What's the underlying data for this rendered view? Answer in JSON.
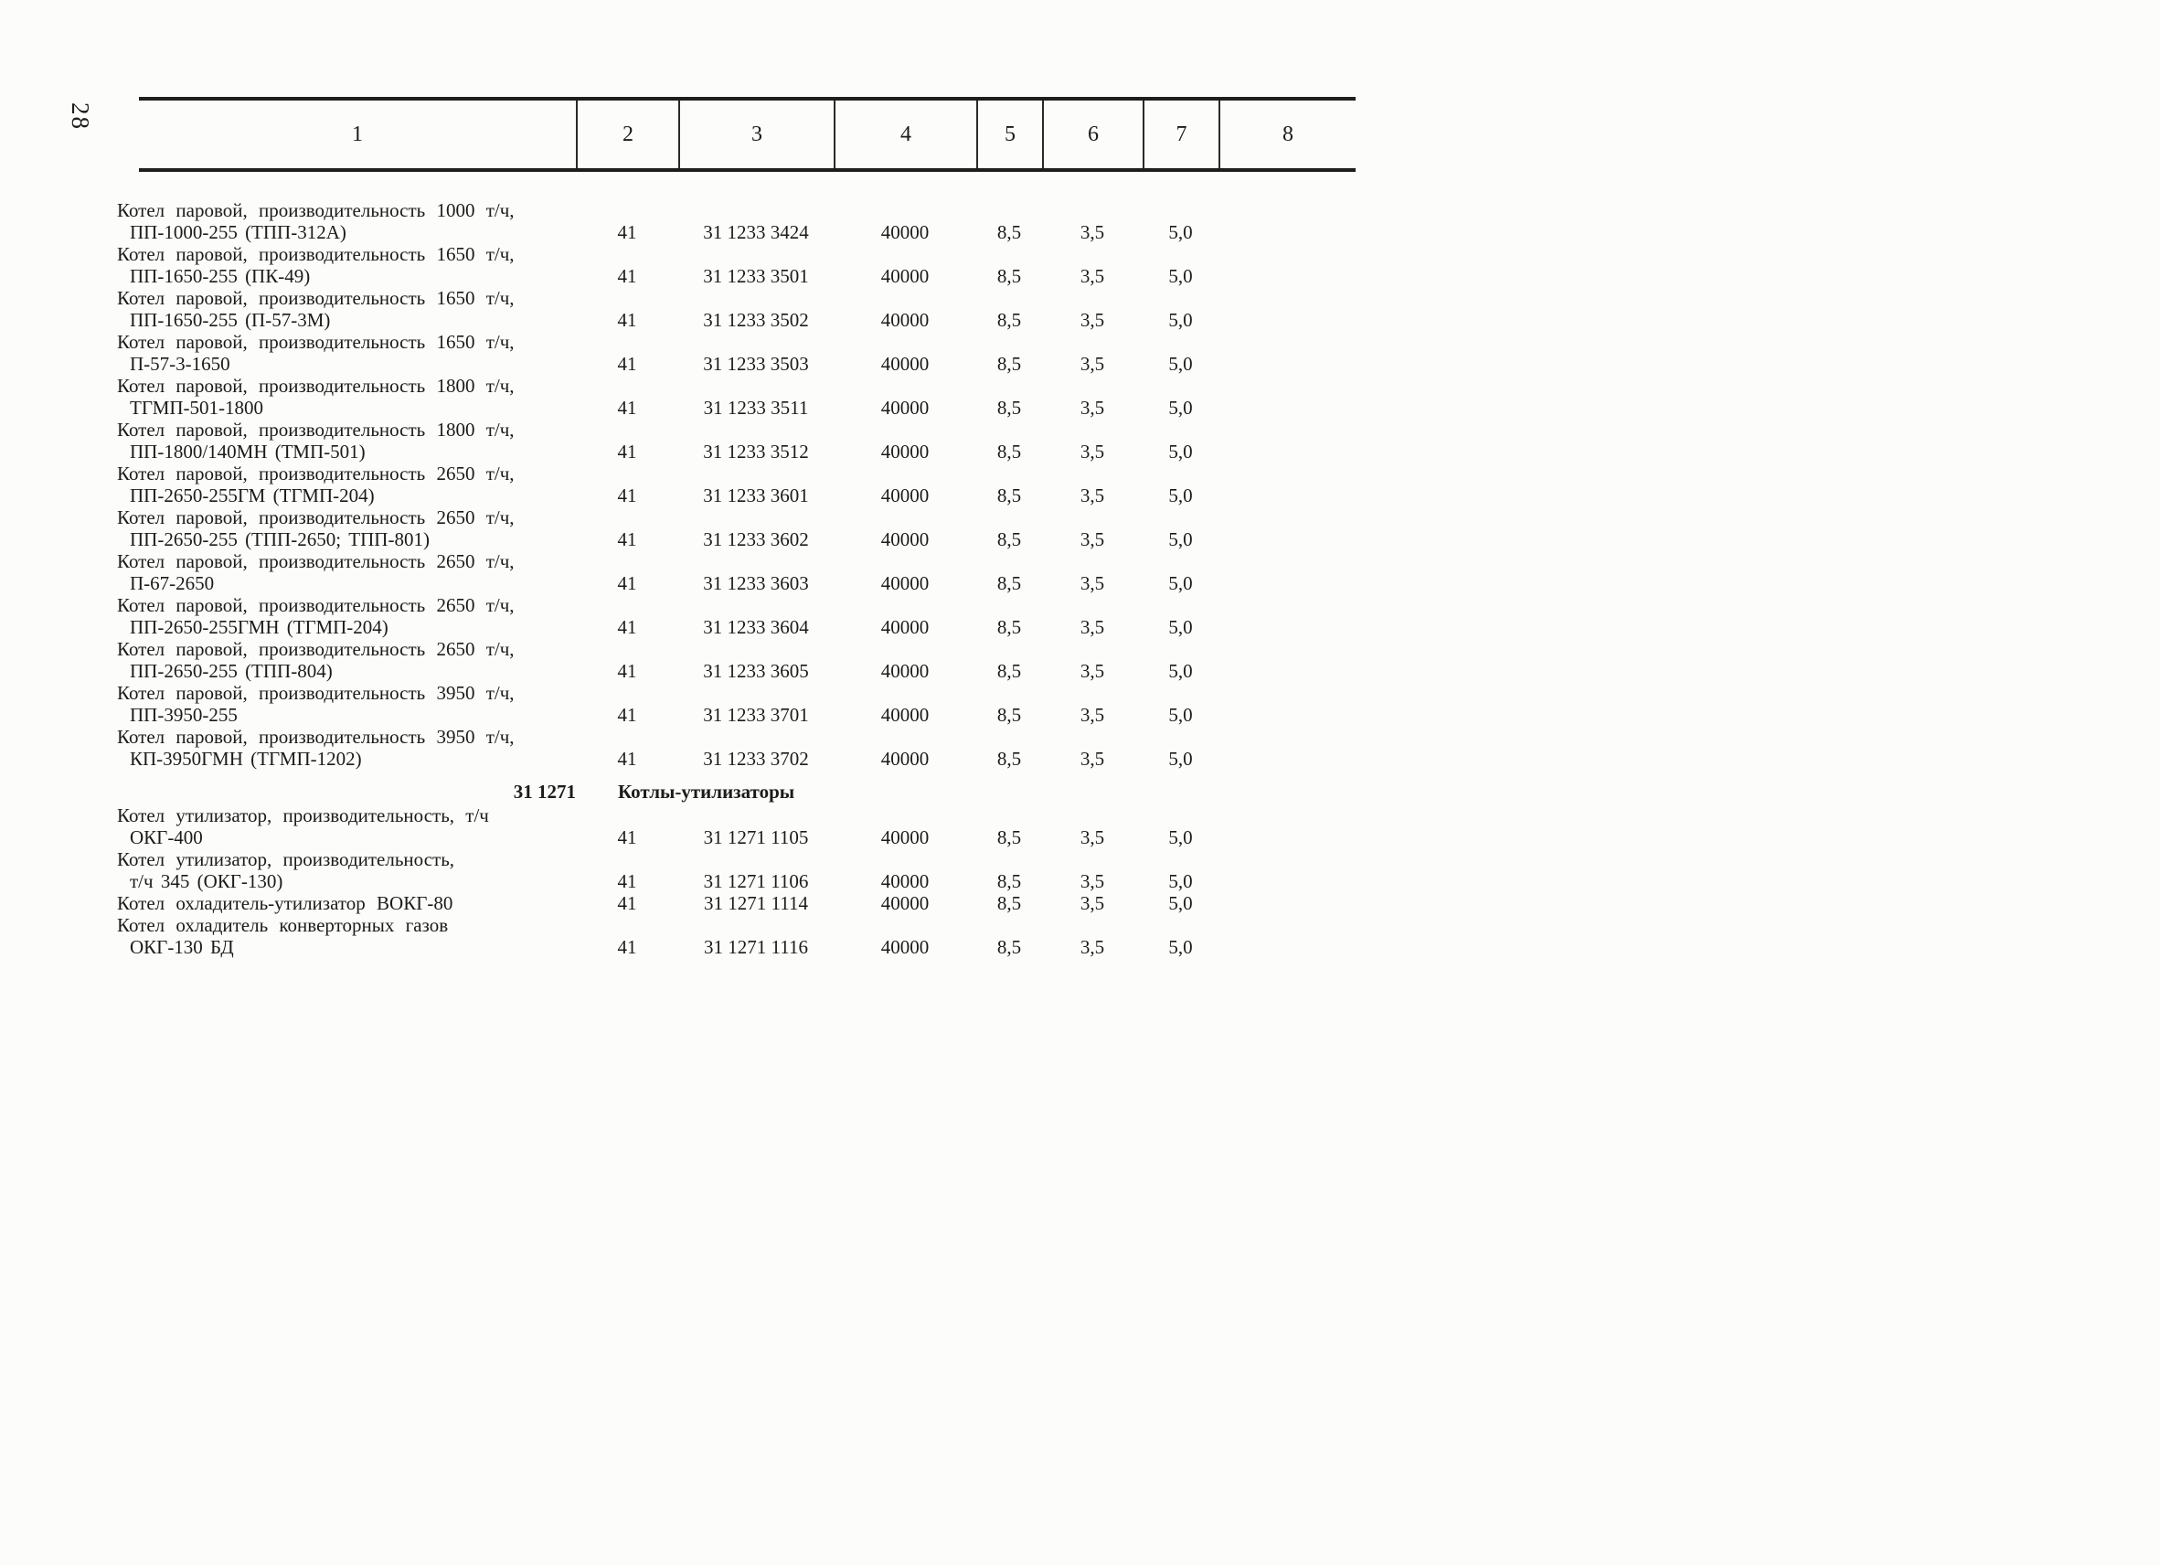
{
  "page": {
    "number": "28"
  },
  "colors": {
    "paper": "#fcfcfa",
    "ink": "#1b1b1b",
    "rule": "#1e1e1e"
  },
  "table": {
    "headers": [
      "1",
      "2",
      "3",
      "4",
      "5",
      "6",
      "7",
      "8"
    ],
    "rows": [
      {
        "name1": "Котел паровой, производительность 1000 т/ч,",
        "name2": "ПП-1000-255 (ТПП-312А)",
        "c2": "41",
        "c3": "31 1233 3424",
        "c4": "40000",
        "c5": "8,5",
        "c6": "3,5",
        "c7": "5,0",
        "c8": ""
      },
      {
        "name1": "Котел паровой, производительность 1650 т/ч,",
        "name2": "ПП-1650-255 (ПК-49)",
        "c2": "41",
        "c3": "31 1233 3501",
        "c4": "40000",
        "c5": "8,5",
        "c6": "3,5",
        "c7": "5,0",
        "c8": ""
      },
      {
        "name1": "Котел паровой, производительность 1650 т/ч,",
        "name2": "ПП-1650-255 (П-57-3М)",
        "c2": "41",
        "c3": "31 1233 3502",
        "c4": "40000",
        "c5": "8,5",
        "c6": "3,5",
        "c7": "5,0",
        "c8": ""
      },
      {
        "name1": "Котел паровой, производительность 1650 т/ч,",
        "name2": "П-57-3-1650",
        "c2": "41",
        "c3": "31 1233 3503",
        "c4": "40000",
        "c5": "8,5",
        "c6": "3,5",
        "c7": "5,0",
        "c8": ""
      },
      {
        "name1": "Котел паровой, производительность 1800 т/ч,",
        "name2": "ТГМП-501-1800",
        "c2": "41",
        "c3": "31 1233 3511",
        "c4": "40000",
        "c5": "8,5",
        "c6": "3,5",
        "c7": "5,0",
        "c8": ""
      },
      {
        "name1": "Котел паровой, производительность 1800 т/ч,",
        "name2": "ПП-1800/140МН (ТМП-501)",
        "c2": "41",
        "c3": "31 1233 3512",
        "c4": "40000",
        "c5": "8,5",
        "c6": "3,5",
        "c7": "5,0",
        "c8": ""
      },
      {
        "name1": "Котел паровой, производительность 2650 т/ч,",
        "name2": "ПП-2650-255ГМ (ТГМП-204)",
        "c2": "41",
        "c3": "31 1233 3601",
        "c4": "40000",
        "c5": "8,5",
        "c6": "3,5",
        "c7": "5,0",
        "c8": ""
      },
      {
        "name1": "Котел паровой, производительность 2650 т/ч,",
        "name2": "ПП-2650-255 (ТПП-2650; ТПП-801)",
        "c2": "41",
        "c3": "31 1233 3602",
        "c4": "40000",
        "c5": "8,5",
        "c6": "3,5",
        "c7": "5,0",
        "c8": ""
      },
      {
        "name1": "Котел паровой, производительность 2650 т/ч,",
        "name2": "П-67-2650",
        "c2": "41",
        "c3": "31 1233 3603",
        "c4": "40000",
        "c5": "8,5",
        "c6": "3,5",
        "c7": "5,0",
        "c8": ""
      },
      {
        "name1": "Котел паровой, производительность 2650 т/ч,",
        "name2": "ПП-2650-255ГМН (ТГМП-204)",
        "c2": "41",
        "c3": "31 1233 3604",
        "c4": "40000",
        "c5": "8,5",
        "c6": "3,5",
        "c7": "5,0",
        "c8": ""
      },
      {
        "name1": "Котел паровой, производительность 2650 т/ч,",
        "name2": "ПП-2650-255 (ТПП-804)",
        "c2": "41",
        "c3": "31 1233 3605",
        "c4": "40000",
        "c5": "8,5",
        "c6": "3,5",
        "c7": "5,0",
        "c8": ""
      },
      {
        "name1": "Котел паровой, производительность 3950 т/ч,",
        "name2": "ПП-3950-255",
        "c2": "41",
        "c3": "31 1233 3701",
        "c4": "40000",
        "c5": "8,5",
        "c6": "3,5",
        "c7": "5,0",
        "c8": ""
      },
      {
        "name1": "Котел паровой, производительность 3950 т/ч,",
        "name2": "КП-3950ГМН (ТГМП-1202)",
        "c2": "41",
        "c3": "31 1233 3702",
        "c4": "40000",
        "c5": "8,5",
        "c6": "3,5",
        "c7": "5,0",
        "c8": ""
      },
      {
        "type": "section",
        "code": "31 1271",
        "title": "Котлы-утилизаторы"
      },
      {
        "name1": "Котел утилизатор, производительность, т/ч",
        "name2": "ОКГ-400",
        "c2": "41",
        "c3": "31 1271 1105",
        "c4": "40000",
        "c5": "8,5",
        "c6": "3,5",
        "c7": "5,0",
        "c8": ""
      },
      {
        "name1": "Котел утилизатор, производительность,",
        "name2": "т/ч 345 (ОКГ-130)",
        "c2": "41",
        "c3": "31 1271 1106",
        "c4": "40000",
        "c5": "8,5",
        "c6": "3,5",
        "c7": "5,0",
        "c8": ""
      },
      {
        "name1": "Котел охладитель-утилизатор ВОКГ-80",
        "name2": "",
        "c2": "41",
        "c3": "31 1271 1114",
        "c4": "40000",
        "c5": "8,5",
        "c6": "3,5",
        "c7": "5,0",
        "c8": ""
      },
      {
        "name1": "Котел охладитель конверторных газов",
        "name2": "ОКГ-130 БД",
        "c2": "41",
        "c3": "31 1271 1116",
        "c4": "40000",
        "c5": "8,5",
        "c6": "3,5",
        "c7": "5,0",
        "c8": ""
      }
    ]
  }
}
